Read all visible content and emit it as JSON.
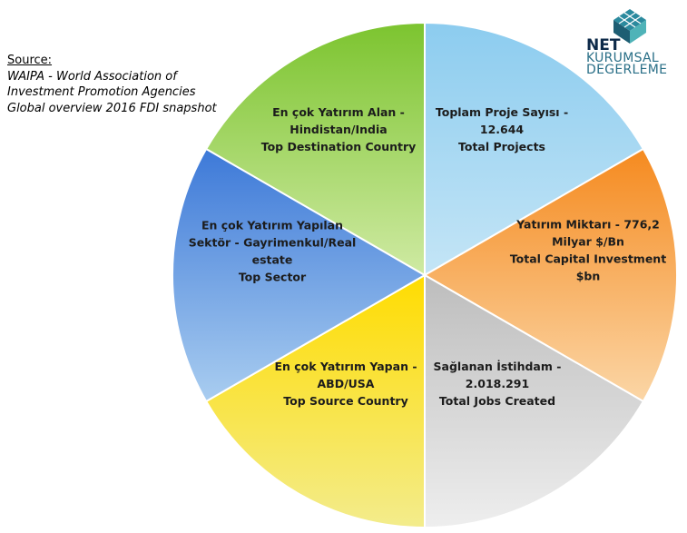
{
  "source": {
    "label": "Source:",
    "lines": [
      "WAIPA - World Association of",
      "Investment Promotion Agencies",
      "Global overview 2016 FDI snapshot"
    ]
  },
  "logo": {
    "net": "NET",
    "kurumsal": "KURUMSAL",
    "degerleme": "DEGERLEME"
  },
  "colors": {
    "top_projects": "#9fd5f1",
    "capital": "#f7a34c",
    "jobs": "#cfcfcf",
    "source_country": "#f5dd3a",
    "sector": "#6fa2e0",
    "destination": "#aedc6b"
  },
  "slices": [
    {
      "id": "total-projects",
      "lines": [
        "Toplam Proje Sayısı -",
        "12.644",
        "Total Projects"
      ]
    },
    {
      "id": "capital-investment",
      "lines": [
        "Yatırım Miktarı - 776,2",
        "Milyar $/Bn",
        "Total Capital Investment",
        "$bn"
      ]
    },
    {
      "id": "jobs-created",
      "lines": [
        "Sağlanan İstihdam -",
        "2.018.291",
        "Total Jobs Created"
      ]
    },
    {
      "id": "top-source-country",
      "lines": [
        "En çok Yatırım Yapan -",
        "ABD/USA",
        "Top Source Country"
      ]
    },
    {
      "id": "top-sector",
      "lines": [
        "En çok Yatırım Yapılan",
        "Sektör - Gayrimenkul/Real",
        "estate",
        "Top Sector"
      ]
    },
    {
      "id": "top-destination-country",
      "lines": [
        "En çok Yatırım Alan -",
        "Hindistan/India",
        "Top Destination Country"
      ]
    }
  ]
}
